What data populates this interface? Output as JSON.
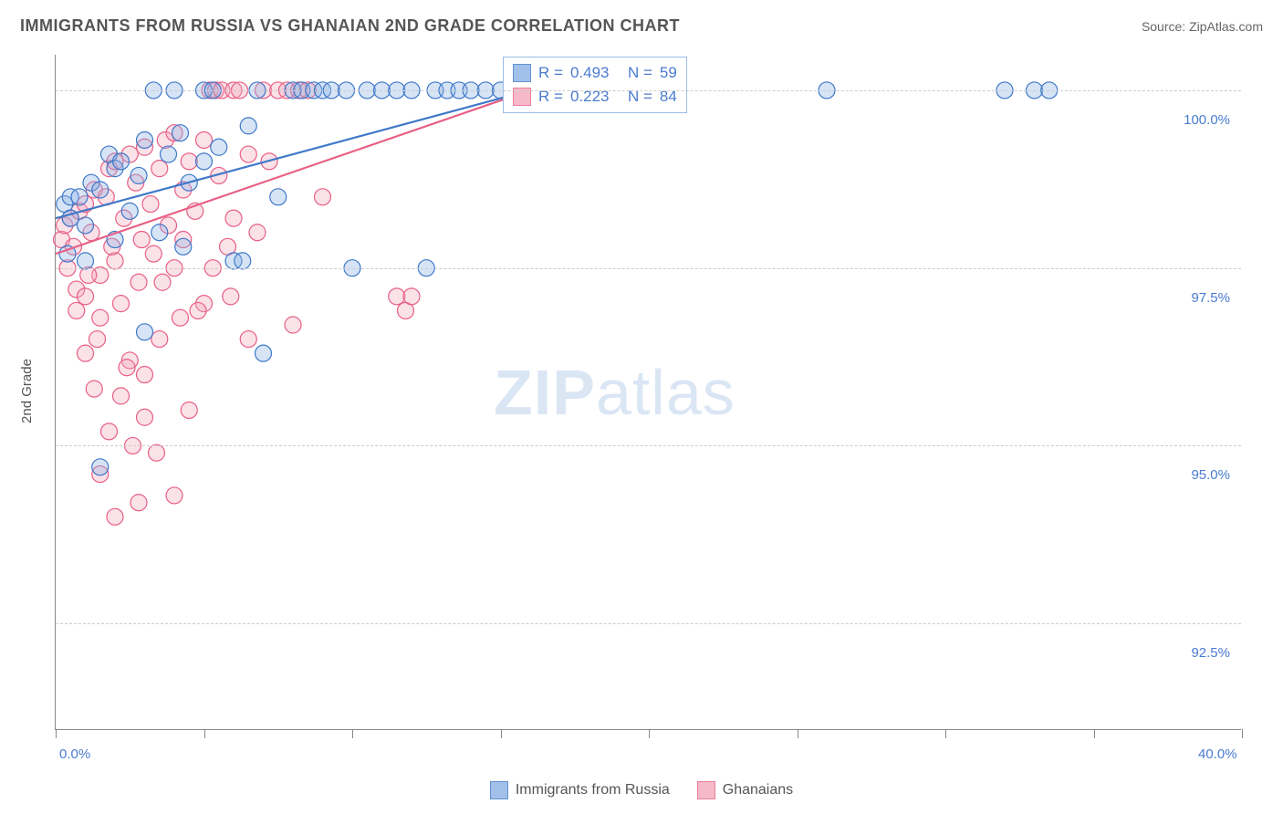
{
  "header": {
    "title": "IMMIGRANTS FROM RUSSIA VS GHANAIAN 2ND GRADE CORRELATION CHART",
    "source": "Source: ZipAtlas.com"
  },
  "axes": {
    "ylabel": "2nd Grade",
    "xlim": [
      0,
      40
    ],
    "ylim": [
      91.0,
      100.5
    ],
    "ytick_values": [
      92.5,
      95.0,
      97.5,
      100.0
    ],
    "ytick_labels": [
      "92.5%",
      "95.0%",
      "97.5%",
      "100.0%"
    ],
    "xtick_values": [
      0,
      5,
      10,
      15,
      20,
      25,
      30,
      35,
      40
    ],
    "xtick_labels_shown": {
      "0": "0.0%",
      "40": "40.0%"
    }
  },
  "style": {
    "background": "#ffffff",
    "grid_color": "#cccccc",
    "axis_color": "#888888",
    "title_color": "#555555",
    "tick_label_color": "#4a7bd0",
    "ylabel_color": "#555555",
    "point_radius": 9,
    "point_stroke_width": 1.2,
    "point_fill_opacity": 0.35,
    "trend_line_width": 2.2
  },
  "series": {
    "russia": {
      "label": "Immigrants from Russia",
      "color_stroke": "#3f78c9",
      "color_fill": "#8ab1e6",
      "trend": {
        "x1": 0,
        "y1": 98.2,
        "x2": 16,
        "y2": 100.0
      },
      "stats": {
        "R": "0.493",
        "N": "59"
      },
      "points": [
        [
          0.3,
          98.4
        ],
        [
          0.5,
          98.5
        ],
        [
          0.8,
          98.5
        ],
        [
          0.5,
          98.2
        ],
        [
          1.0,
          98.1
        ],
        [
          1.2,
          98.7
        ],
        [
          0.4,
          97.7
        ],
        [
          1.5,
          98.6
        ],
        [
          1.8,
          99.1
        ],
        [
          1.0,
          97.6
        ],
        [
          2.0,
          98.9
        ],
        [
          2.2,
          99.0
        ],
        [
          2.5,
          98.3
        ],
        [
          2.8,
          98.8
        ],
        [
          2.0,
          97.9
        ],
        [
          3.0,
          99.3
        ],
        [
          3.3,
          100.0
        ],
        [
          3.5,
          98.0
        ],
        [
          3.8,
          99.1
        ],
        [
          4.0,
          100.0
        ],
        [
          4.2,
          99.4
        ],
        [
          4.5,
          98.7
        ],
        [
          5.0,
          99.0
        ],
        [
          5.0,
          100.0
        ],
        [
          5.3,
          100.0
        ],
        [
          5.5,
          99.2
        ],
        [
          6.0,
          97.6
        ],
        [
          6.5,
          99.5
        ],
        [
          6.8,
          100.0
        ],
        [
          7.0,
          96.3
        ],
        [
          7.5,
          98.5
        ],
        [
          8.0,
          100.0
        ],
        [
          8.3,
          100.0
        ],
        [
          8.7,
          100.0
        ],
        [
          9.0,
          100.0
        ],
        [
          9.3,
          100.0
        ],
        [
          9.8,
          100.0
        ],
        [
          10.0,
          97.5
        ],
        [
          10.5,
          100.0
        ],
        [
          11.0,
          100.0
        ],
        [
          11.5,
          100.0
        ],
        [
          12.0,
          100.0
        ],
        [
          12.5,
          97.5
        ],
        [
          12.8,
          100.0
        ],
        [
          13.2,
          100.0
        ],
        [
          13.6,
          100.0
        ],
        [
          14.0,
          100.0
        ],
        [
          14.5,
          100.0
        ],
        [
          15.0,
          100.0
        ],
        [
          18.0,
          100.0
        ],
        [
          20.0,
          100.0
        ],
        [
          26.0,
          100.0
        ],
        [
          32.0,
          100.0
        ],
        [
          33.0,
          100.0
        ],
        [
          33.5,
          100.0
        ],
        [
          1.5,
          94.7
        ],
        [
          3.0,
          96.6
        ],
        [
          4.3,
          97.8
        ],
        [
          6.3,
          97.6
        ]
      ]
    },
    "ghana": {
      "label": "Ghanaians",
      "color_stroke": "#e85f85",
      "color_fill": "#f3a8bc",
      "trend": {
        "x1": 0,
        "y1": 97.7,
        "x2": 16,
        "y2": 100.0
      },
      "stats": {
        "R": "0.223",
        "N": "84"
      },
      "points": [
        [
          0.2,
          97.9
        ],
        [
          0.3,
          98.1
        ],
        [
          0.5,
          98.2
        ],
        [
          0.4,
          97.5
        ],
        [
          0.6,
          97.8
        ],
        [
          0.8,
          98.3
        ],
        [
          0.7,
          97.2
        ],
        [
          1.0,
          98.4
        ],
        [
          1.0,
          97.1
        ],
        [
          1.2,
          98.0
        ],
        [
          1.3,
          98.6
        ],
        [
          1.5,
          97.4
        ],
        [
          1.5,
          96.8
        ],
        [
          1.7,
          98.5
        ],
        [
          1.8,
          98.9
        ],
        [
          2.0,
          97.6
        ],
        [
          2.0,
          99.0
        ],
        [
          2.2,
          97.0
        ],
        [
          2.3,
          98.2
        ],
        [
          2.5,
          99.1
        ],
        [
          2.5,
          96.2
        ],
        [
          2.7,
          98.7
        ],
        [
          2.8,
          97.3
        ],
        [
          3.0,
          99.2
        ],
        [
          3.0,
          96.0
        ],
        [
          3.2,
          98.4
        ],
        [
          3.3,
          97.7
        ],
        [
          3.5,
          98.9
        ],
        [
          3.5,
          96.5
        ],
        [
          3.7,
          99.3
        ],
        [
          3.8,
          98.1
        ],
        [
          4.0,
          97.5
        ],
        [
          4.0,
          99.4
        ],
        [
          4.2,
          96.8
        ],
        [
          4.3,
          98.6
        ],
        [
          4.5,
          99.0
        ],
        [
          4.5,
          95.5
        ],
        [
          4.7,
          98.3
        ],
        [
          5.0,
          99.3
        ],
        [
          5.0,
          97.0
        ],
        [
          5.2,
          100.0
        ],
        [
          5.4,
          100.0
        ],
        [
          5.6,
          100.0
        ],
        [
          5.5,
          98.8
        ],
        [
          5.8,
          97.8
        ],
        [
          6.0,
          100.0
        ],
        [
          6.0,
          98.2
        ],
        [
          6.2,
          100.0
        ],
        [
          6.5,
          99.1
        ],
        [
          6.5,
          96.5
        ],
        [
          6.8,
          98.0
        ],
        [
          7.0,
          100.0
        ],
        [
          7.2,
          99.0
        ],
        [
          7.5,
          100.0
        ],
        [
          7.8,
          100.0
        ],
        [
          8.0,
          96.7
        ],
        [
          8.2,
          100.0
        ],
        [
          8.5,
          100.0
        ],
        [
          9.0,
          98.5
        ],
        [
          1.0,
          96.3
        ],
        [
          1.3,
          95.8
        ],
        [
          1.8,
          95.2
        ],
        [
          2.2,
          95.7
        ],
        [
          2.6,
          95.0
        ],
        [
          3.0,
          95.4
        ],
        [
          3.4,
          94.9
        ],
        [
          4.0,
          94.3
        ],
        [
          2.0,
          94.0
        ],
        [
          1.5,
          94.6
        ],
        [
          2.8,
          94.2
        ],
        [
          0.7,
          96.9
        ],
        [
          1.1,
          97.4
        ],
        [
          1.4,
          96.5
        ],
        [
          1.9,
          97.8
        ],
        [
          2.4,
          96.1
        ],
        [
          2.9,
          97.9
        ],
        [
          3.6,
          97.3
        ],
        [
          4.3,
          97.9
        ],
        [
          4.8,
          96.9
        ],
        [
          5.3,
          97.5
        ],
        [
          5.9,
          97.1
        ],
        [
          11.5,
          97.1
        ],
        [
          11.8,
          96.9
        ],
        [
          12.0,
          97.1
        ]
      ]
    }
  },
  "legend_top": {
    "rows": [
      {
        "swatch_series": "russia",
        "R_label": "R =",
        "N_label": "N =",
        "series_key": "russia"
      },
      {
        "swatch_series": "ghana",
        "R_label": "R =",
        "N_label": "N =",
        "series_key": "ghana"
      }
    ]
  },
  "bottom_legend": [
    {
      "series_key": "russia"
    },
    {
      "series_key": "ghana"
    }
  ],
  "watermark": {
    "zip": "ZIP",
    "atlas": "atlas"
  }
}
